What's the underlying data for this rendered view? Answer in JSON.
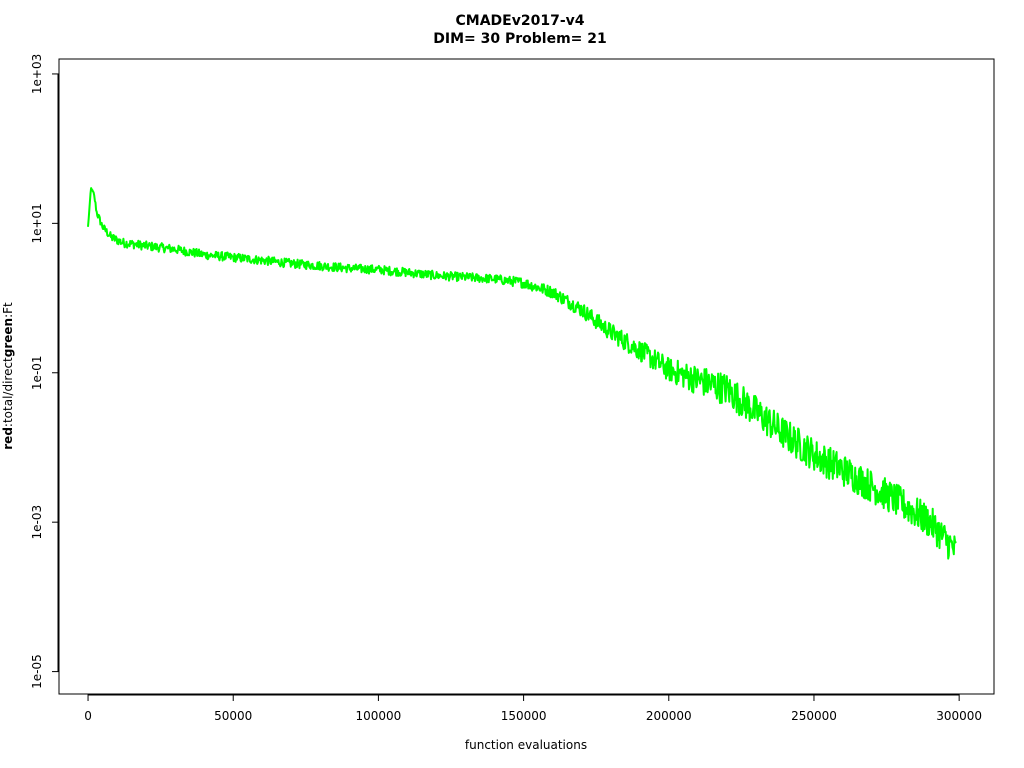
{
  "chart_data": {
    "type": "line",
    "title_line1": "CMADEv2017-v4",
    "title_line2": "DIM= 30   Problem= 21",
    "xlabel": "function evaluations",
    "ylabel_parts": {
      "red_word": "red",
      "red_desc": ":total/direct",
      "green_word": "green",
      "green_desc": ":Ft"
    },
    "xlim": [
      -10000,
      312000
    ],
    "ylim_log10": [
      -5.3,
      3.2
    ],
    "y_scale": "log",
    "x_ticks": [
      0,
      50000,
      100000,
      150000,
      200000,
      250000,
      300000
    ],
    "x_tick_labels": [
      "0",
      "50000",
      "100000",
      "150000",
      "200000",
      "250000",
      "300000"
    ],
    "y_ticks_log10": [
      3,
      1,
      -1,
      -3,
      -5
    ],
    "y_tick_labels": [
      "1e+03",
      "1e+01",
      "1e-01",
      "1e-03",
      "1e-05"
    ],
    "grid": false,
    "series": [
      {
        "color": "#00ff00",
        "x": [
          0,
          1000,
          2000,
          3000,
          5000,
          8000,
          12000,
          20000,
          30000,
          40000,
          50000,
          60000,
          70000,
          80000,
          90000,
          100000,
          110000,
          120000,
          130000,
          140000,
          150000,
          160000,
          170000,
          180000,
          190000,
          200000,
          210000,
          220000,
          230000,
          240000,
          250000,
          260000,
          270000,
          280000,
          290000,
          295000,
          299000
        ],
        "y": [
          9,
          30,
          25,
          14,
          9,
          6.5,
          5.5,
          5,
          4.5,
          3.8,
          3.5,
          3.2,
          2.9,
          2.7,
          2.5,
          2.4,
          2.2,
          2.0,
          1.9,
          1.8,
          1.6,
          1.2,
          0.7,
          0.35,
          0.2,
          0.11,
          0.08,
          0.06,
          0.03,
          0.015,
          0.008,
          0.005,
          0.003,
          0.0018,
          0.001,
          0.0006,
          0.0004
        ],
        "noise_log10": [
          0,
          0,
          0.02,
          0.05,
          0.05,
          0.06,
          0.06,
          0.06,
          0.06,
          0.06,
          0.06,
          0.06,
          0.06,
          0.06,
          0.06,
          0.06,
          0.06,
          0.06,
          0.06,
          0.06,
          0.07,
          0.08,
          0.1,
          0.12,
          0.14,
          0.16,
          0.2,
          0.22,
          0.22,
          0.22,
          0.22,
          0.22,
          0.22,
          0.22,
          0.22,
          0.22,
          0.22
        ]
      }
    ]
  }
}
